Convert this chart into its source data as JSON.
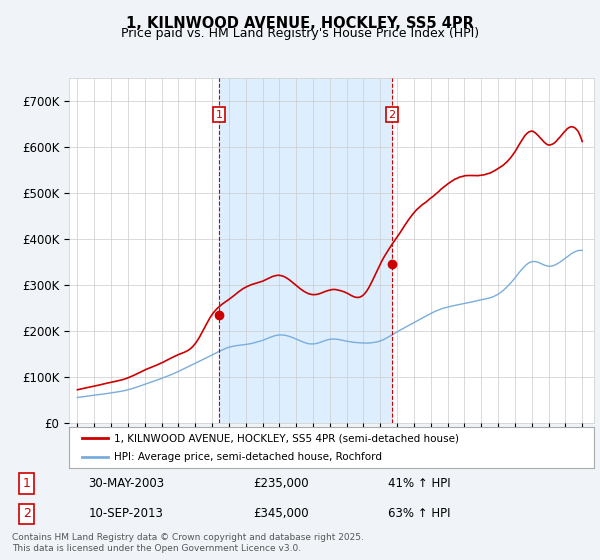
{
  "title": "1, KILNWOOD AVENUE, HOCKLEY, SS5 4PR",
  "subtitle": "Price paid vs. HM Land Registry's House Price Index (HPI)",
  "legend_line1": "1, KILNWOOD AVENUE, HOCKLEY, SS5 4PR (semi-detached house)",
  "legend_line2": "HPI: Average price, semi-detached house, Rochford",
  "ann1_label": "1",
  "ann1_date": "30-MAY-2003",
  "ann1_price": "£235,000",
  "ann1_pct": "41% ↑ HPI",
  "ann1_x": 2003.42,
  "ann1_y": 235000,
  "ann2_label": "2",
  "ann2_date": "10-SEP-2013",
  "ann2_price": "£345,000",
  "ann2_pct": "63% ↑ HPI",
  "ann2_x": 2013.69,
  "ann2_y": 345000,
  "footer": "Contains HM Land Registry data © Crown copyright and database right 2025.\nThis data is licensed under the Open Government Licence v3.0.",
  "red_color": "#cc0000",
  "blue_color": "#7aaddc",
  "shade_color": "#ddeeff",
  "background_color": "#f0f4f8",
  "plot_bg_color": "#ffffff",
  "grid_color": "#cccccc",
  "ylim": [
    0,
    750000
  ],
  "yticks": [
    0,
    100000,
    200000,
    300000,
    400000,
    500000,
    600000,
    700000
  ],
  "ytick_labels": [
    "£0",
    "£100K",
    "£200K",
    "£300K",
    "£400K",
    "£500K",
    "£600K",
    "£700K"
  ],
  "xlim_start": 1994.5,
  "xlim_end": 2025.7
}
